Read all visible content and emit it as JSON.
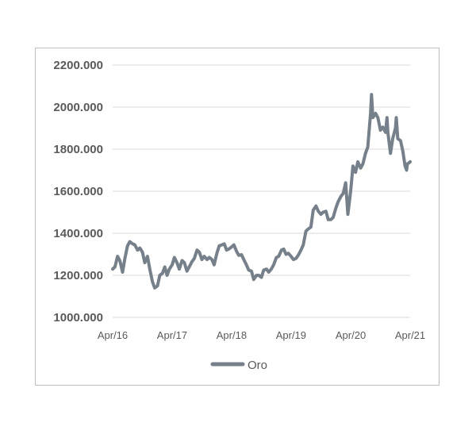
{
  "chart_data": {
    "type": "line",
    "ylim": [
      1000,
      2200
    ],
    "yticks": [
      {
        "value": 2200,
        "label": "2200.000"
      },
      {
        "value": 2000,
        "label": "2000.000"
      },
      {
        "value": 1800,
        "label": "1800.000"
      },
      {
        "value": 1600,
        "label": "1600.000"
      },
      {
        "value": 1400,
        "label": "1400.000"
      },
      {
        "value": 1200,
        "label": "1200.000"
      },
      {
        "value": 1000,
        "label": "1000.000"
      }
    ],
    "xlim": [
      "2016-04",
      "2021-04"
    ],
    "xticks": [
      {
        "value": "2016-04",
        "label": "Apr/16"
      },
      {
        "value": "2017-04",
        "label": "Apr/17"
      },
      {
        "value": "2018-04",
        "label": "Apr/18"
      },
      {
        "value": "2019-04",
        "label": "Apr/19"
      },
      {
        "value": "2020-04",
        "label": "Apr/20"
      },
      {
        "value": "2021-04",
        "label": "Apr/21"
      }
    ],
    "grid": true,
    "legend_position": "bottom",
    "series": [
      {
        "name": "Oro",
        "color": "#76808a",
        "points": [
          [
            "2016-04-01",
            1230
          ],
          [
            "2016-04-15",
            1240
          ],
          [
            "2016-05-01",
            1290
          ],
          [
            "2016-05-15",
            1270
          ],
          [
            "2016-06-01",
            1215
          ],
          [
            "2016-06-15",
            1280
          ],
          [
            "2016-07-01",
            1340
          ],
          [
            "2016-07-15",
            1360
          ],
          [
            "2016-08-01",
            1350
          ],
          [
            "2016-08-15",
            1345
          ],
          [
            "2016-09-01",
            1320
          ],
          [
            "2016-09-15",
            1330
          ],
          [
            "2016-10-01",
            1310
          ],
          [
            "2016-10-15",
            1260
          ],
          [
            "2016-11-01",
            1290
          ],
          [
            "2016-11-15",
            1230
          ],
          [
            "2016-12-01",
            1170
          ],
          [
            "2016-12-15",
            1140
          ],
          [
            "2017-01-01",
            1150
          ],
          [
            "2017-01-15",
            1200
          ],
          [
            "2017-02-01",
            1210
          ],
          [
            "2017-02-15",
            1240
          ],
          [
            "2017-03-01",
            1200
          ],
          [
            "2017-03-15",
            1230
          ],
          [
            "2017-04-01",
            1250
          ],
          [
            "2017-04-15",
            1285
          ],
          [
            "2017-05-01",
            1260
          ],
          [
            "2017-05-15",
            1230
          ],
          [
            "2017-06-01",
            1270
          ],
          [
            "2017-06-15",
            1260
          ],
          [
            "2017-07-01",
            1220
          ],
          [
            "2017-07-15",
            1240
          ],
          [
            "2017-08-01",
            1265
          ],
          [
            "2017-08-15",
            1280
          ],
          [
            "2017-09-01",
            1320
          ],
          [
            "2017-09-15",
            1310
          ],
          [
            "2017-10-01",
            1275
          ],
          [
            "2017-10-15",
            1290
          ],
          [
            "2017-11-01",
            1275
          ],
          [
            "2017-11-15",
            1285
          ],
          [
            "2017-12-01",
            1275
          ],
          [
            "2017-12-15",
            1250
          ],
          [
            "2018-01-01",
            1305
          ],
          [
            "2018-01-15",
            1340
          ],
          [
            "2018-02-01",
            1345
          ],
          [
            "2018-02-15",
            1350
          ],
          [
            "2018-03-01",
            1320
          ],
          [
            "2018-03-15",
            1325
          ],
          [
            "2018-04-01",
            1335
          ],
          [
            "2018-04-15",
            1345
          ],
          [
            "2018-05-01",
            1315
          ],
          [
            "2018-05-15",
            1295
          ],
          [
            "2018-06-01",
            1298
          ],
          [
            "2018-06-15",
            1275
          ],
          [
            "2018-07-01",
            1250
          ],
          [
            "2018-07-15",
            1225
          ],
          [
            "2018-08-01",
            1220
          ],
          [
            "2018-08-15",
            1180
          ],
          [
            "2018-09-01",
            1200
          ],
          [
            "2018-09-15",
            1200
          ],
          [
            "2018-10-01",
            1190
          ],
          [
            "2018-10-15",
            1225
          ],
          [
            "2018-11-01",
            1230
          ],
          [
            "2018-11-15",
            1215
          ],
          [
            "2018-12-01",
            1230
          ],
          [
            "2018-12-15",
            1250
          ],
          [
            "2019-01-01",
            1285
          ],
          [
            "2019-01-15",
            1290
          ],
          [
            "2019-02-01",
            1320
          ],
          [
            "2019-02-15",
            1325
          ],
          [
            "2019-03-01",
            1300
          ],
          [
            "2019-03-15",
            1305
          ],
          [
            "2019-04-01",
            1290
          ],
          [
            "2019-04-15",
            1275
          ],
          [
            "2019-05-01",
            1280
          ],
          [
            "2019-05-15",
            1295
          ],
          [
            "2019-06-01",
            1320
          ],
          [
            "2019-06-15",
            1345
          ],
          [
            "2019-07-01",
            1410
          ],
          [
            "2019-07-15",
            1420
          ],
          [
            "2019-08-01",
            1430
          ],
          [
            "2019-08-15",
            1510
          ],
          [
            "2019-09-01",
            1530
          ],
          [
            "2019-09-15",
            1505
          ],
          [
            "2019-10-01",
            1490
          ],
          [
            "2019-10-15",
            1500
          ],
          [
            "2019-11-01",
            1505
          ],
          [
            "2019-11-15",
            1465
          ],
          [
            "2019-12-01",
            1465
          ],
          [
            "2019-12-15",
            1475
          ],
          [
            "2020-01-01",
            1520
          ],
          [
            "2020-01-15",
            1550
          ],
          [
            "2020-02-01",
            1575
          ],
          [
            "2020-02-15",
            1590
          ],
          [
            "2020-03-01",
            1640
          ],
          [
            "2020-03-15",
            1490
          ],
          [
            "2020-04-01",
            1600
          ],
          [
            "2020-04-15",
            1720
          ],
          [
            "2020-05-01",
            1690
          ],
          [
            "2020-05-15",
            1740
          ],
          [
            "2020-06-01",
            1710
          ],
          [
            "2020-06-15",
            1730
          ],
          [
            "2020-07-01",
            1780
          ],
          [
            "2020-07-15",
            1810
          ],
          [
            "2020-08-01",
            1970
          ],
          [
            "2020-08-07",
            2060
          ],
          [
            "2020-08-15",
            1950
          ],
          [
            "2020-09-01",
            1970
          ],
          [
            "2020-09-15",
            1950
          ],
          [
            "2020-10-01",
            1890
          ],
          [
            "2020-10-15",
            1905
          ],
          [
            "2020-11-01",
            1880
          ],
          [
            "2020-11-10",
            1950
          ],
          [
            "2020-11-15",
            1880
          ],
          [
            "2020-12-01",
            1780
          ],
          [
            "2020-12-15",
            1850
          ],
          [
            "2021-01-01",
            1900
          ],
          [
            "2021-01-06",
            1950
          ],
          [
            "2021-01-15",
            1850
          ],
          [
            "2021-02-01",
            1840
          ],
          [
            "2021-02-15",
            1790
          ],
          [
            "2021-03-01",
            1720
          ],
          [
            "2021-03-10",
            1700
          ],
          [
            "2021-03-15",
            1730
          ],
          [
            "2021-03-25",
            1735
          ],
          [
            "2021-04-01",
            1740
          ]
        ]
      }
    ]
  }
}
